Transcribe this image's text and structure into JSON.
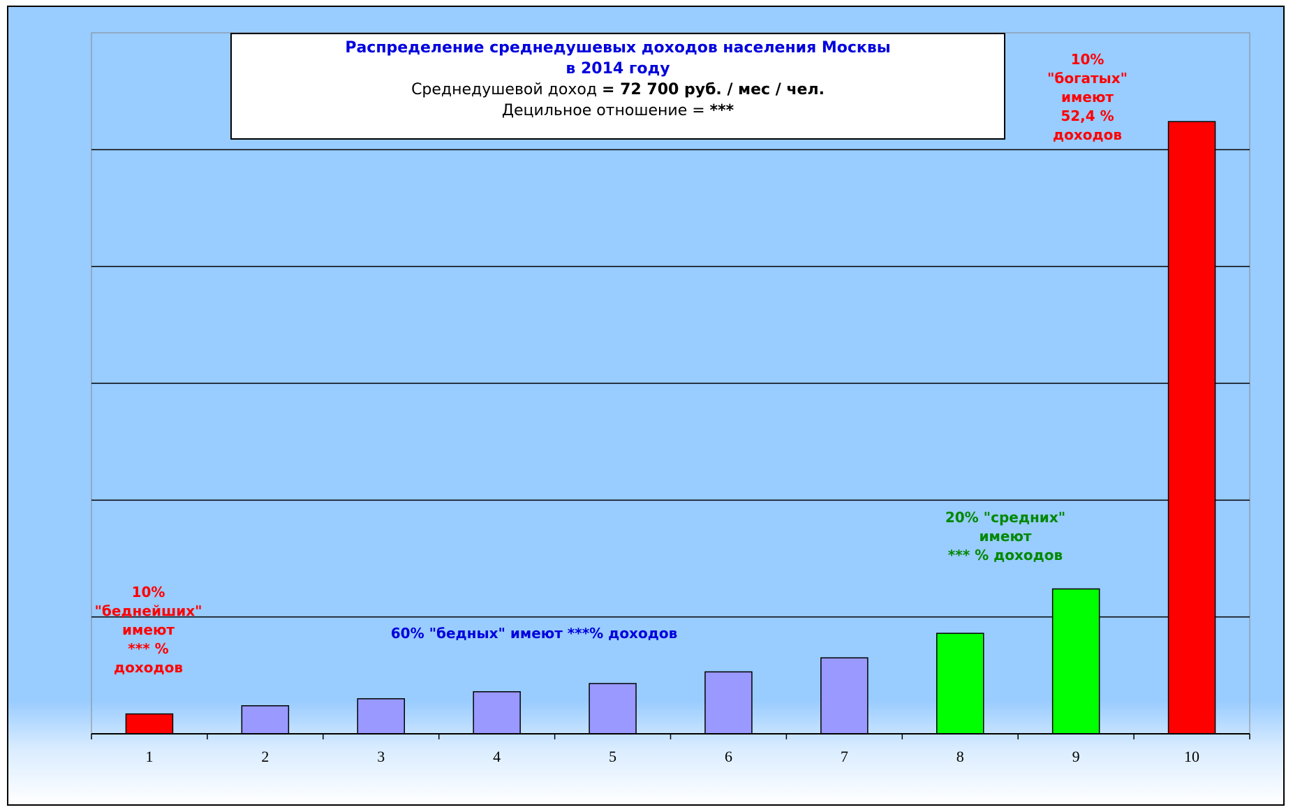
{
  "chart_data": {
    "type": "bar",
    "title_line1": "Распределение среднедушевых доходов  населения Москвы",
    "title_line2": "в 2014  году",
    "subtitle_prefix": "Среднедушевой доход ",
    "subtitle_value": "= 72 700 руб. / мес / чел.",
    "ratio_prefix": "Децильное отношение  = ",
    "ratio_value": "***",
    "categories": [
      "1",
      "2",
      "3",
      "4",
      "5",
      "6",
      "7",
      "8",
      "9",
      "10"
    ],
    "values": [
      1.7,
      2.4,
      3.0,
      3.6,
      4.3,
      5.3,
      6.5,
      8.6,
      12.4,
      52.4
    ],
    "colors": [
      "#ff0000",
      "#9999ff",
      "#9999ff",
      "#9999ff",
      "#9999ff",
      "#9999ff",
      "#9999ff",
      "#00ff00",
      "#00ff00",
      "#ff0000"
    ],
    "ylim": [
      0,
      60
    ],
    "gridlines": [
      10,
      20,
      30,
      40,
      50
    ],
    "grid": true,
    "xlabel": "",
    "ylabel": "",
    "annotations": {
      "poorest": [
        "10%",
        "\"беднейших\"",
        "имеют",
        "*** %",
        "доходов"
      ],
      "poor": [
        "60% \"бедных\" имеют ***% доходов"
      ],
      "middle": [
        "20% \"средних\"",
        "имеют",
        "*** % доходов"
      ],
      "rich": [
        "10%",
        "\"богатых\"",
        "имеют",
        "52,4 %",
        "доходов"
      ]
    }
  }
}
